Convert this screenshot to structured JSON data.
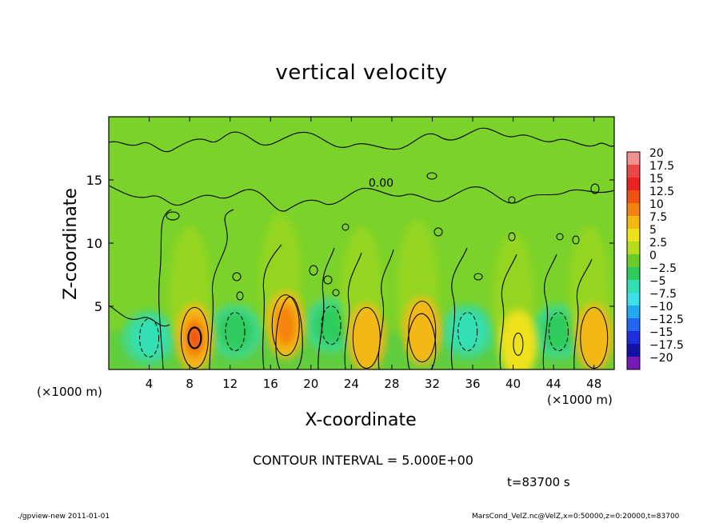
{
  "chart_data": {
    "type": "heatmap",
    "title": "vertical velocity",
    "xlabel": "X-coordinate",
    "ylabel": "Z-coordinate",
    "x_unit_left": "(×1000 m)",
    "x_unit_right": "(×1000 m)",
    "xlim": [
      0,
      50
    ],
    "ylim": [
      0,
      20
    ],
    "x_ticks": [
      4,
      8,
      12,
      16,
      20,
      24,
      28,
      32,
      36,
      40,
      44,
      48
    ],
    "y_ticks": [
      5,
      10,
      15
    ],
    "contour_label": "0.00",
    "colorbar": {
      "levels": [
        20,
        17.5,
        15,
        12.5,
        10,
        7.5,
        5,
        2.5,
        0,
        -2.5,
        -5,
        -7.5,
        -10,
        -12.5,
        -15,
        -17.5,
        -20
      ],
      "labels": [
        "20",
        "17.5",
        "15",
        "12.5",
        "10",
        "7.5",
        "5",
        "2.5",
        "0",
        "−2.5",
        "−5",
        "−7.5",
        "−10",
        "−12.5",
        "−15",
        "−17.5",
        "−20"
      ],
      "colors": [
        "#f29090",
        "#ec4646",
        "#ea2222",
        "#f05212",
        "#f58210",
        "#f4b812",
        "#eee21c",
        "#b4dc1c",
        "#6acc28",
        "#2ecc5c",
        "#30e0b4",
        "#3ce0e8",
        "#22aaf0",
        "#2266f2",
        "#1e2edc",
        "#1212a8",
        "#7818b8"
      ]
    },
    "updraft_cores": [
      {
        "x": 8.5,
        "z": 2.5,
        "w": 12
      },
      {
        "x": 17.5,
        "z": 3.5,
        "w": 8
      },
      {
        "x": 25.5,
        "z": 2.5,
        "w": 5
      },
      {
        "x": 31,
        "z": 3,
        "w": 7
      },
      {
        "x": 40.5,
        "z": 2,
        "w": 4
      },
      {
        "x": 48,
        "z": 2.5,
        "w": 6
      }
    ],
    "downdraft_cores": [
      {
        "x": 4,
        "z": 2.5,
        "w": -6
      },
      {
        "x": 12.5,
        "z": 3,
        "w": -4
      },
      {
        "x": 22,
        "z": 3.5,
        "w": -4
      },
      {
        "x": 35.5,
        "z": 3,
        "w": -6
      },
      {
        "x": 44.5,
        "z": 3,
        "w": -3
      }
    ]
  },
  "contour_interval_text": "CONTOUR INTERVAL = 5.000E+00",
  "time_text": "t=83700 s",
  "footer_left": "./gpview-new  2011-01-01",
  "footer_right": "MarsCond_VelZ.nc@VelZ,x=0:50000,z=0:20000,t=83700"
}
